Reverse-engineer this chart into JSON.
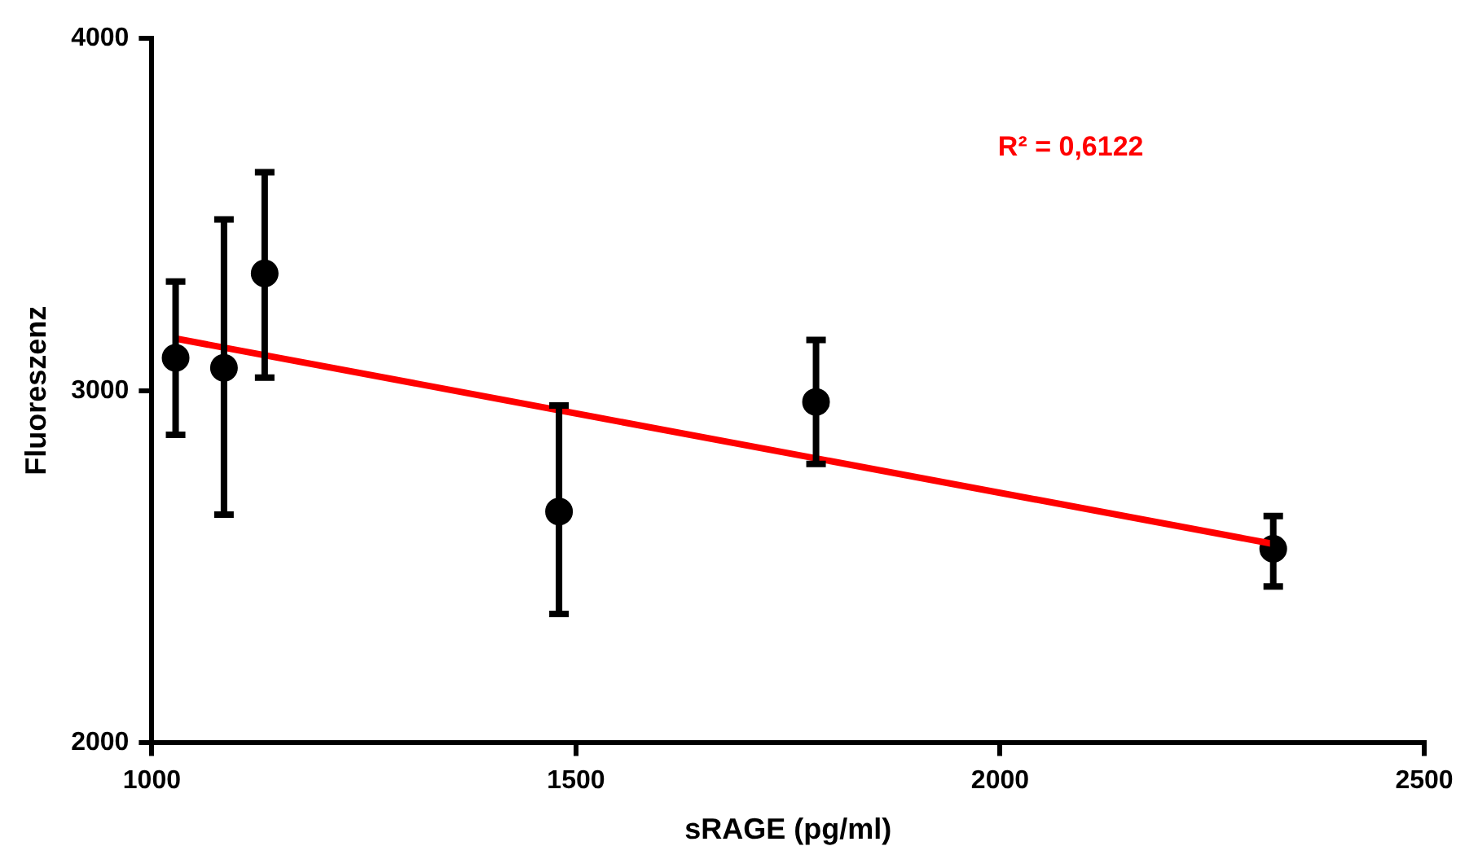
{
  "chart_data": {
    "type": "scatter",
    "xlabel": "sRAGE (pg/ml)",
    "ylabel": "Fluoreszenz",
    "xlim": [
      1000,
      2500
    ],
    "xticks": [
      1000,
      1500,
      2000,
      2500
    ],
    "ylim": [
      2000,
      4000
    ],
    "yticks": [
      2000,
      3000,
      4000
    ],
    "legend": false,
    "annotations": [
      "R² = 0,6122"
    ],
    "series": [
      {
        "marker": "circle",
        "color": "#000000",
        "x": [
          1028,
          1085,
          1133,
          1480,
          1783,
          2322
        ],
        "values": [
          3093,
          3065,
          3333,
          2657,
          2968,
          2551
        ],
        "errors": [
          [
            2875,
            3310
          ],
          [
            2648,
            3486
          ],
          [
            3037,
            3620
          ],
          [
            2366,
            2958
          ],
          [
            2792,
            3144
          ],
          [
            2444,
            2644
          ]
        ]
      },
      {
        "type": "line",
        "marker": "none",
        "color": "#ff0000",
        "x": [
          1028,
          2322
        ],
        "values": [
          3148,
          2565
        ]
      }
    ]
  }
}
